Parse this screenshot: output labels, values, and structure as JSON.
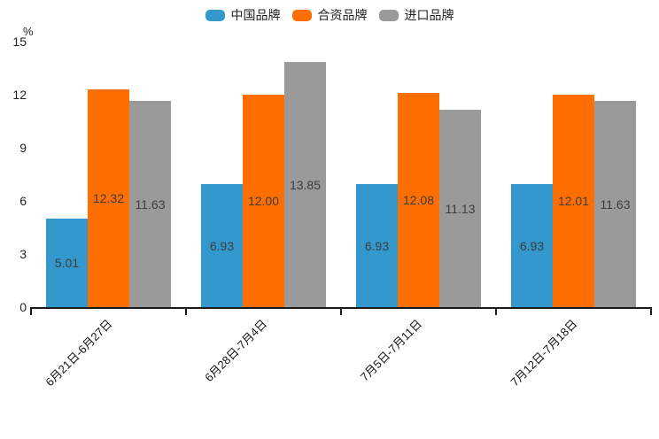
{
  "chart_data": {
    "type": "bar",
    "title": "",
    "xlabel": "",
    "ylabel": "%",
    "categories": [
      "6月21日-6月27日",
      "6月28日-7月4日",
      "7月5日-7月11日",
      "7月12日-7月18日"
    ],
    "series": [
      {
        "name": "中国品牌",
        "color": "#3398CC",
        "values": [
          5.01,
          6.93,
          6.93,
          6.93
        ],
        "value_labels": [
          "5.01",
          "6.93",
          "6.93",
          "6.93"
        ]
      },
      {
        "name": "合资品牌",
        "color": "#FF6E00",
        "values": [
          12.32,
          12.0,
          12.08,
          12.01
        ],
        "value_labels": [
          "12.32",
          "12.00",
          "12.08",
          "12.01"
        ]
      },
      {
        "name": "进口品牌",
        "color": "#9A9A9A",
        "values": [
          11.63,
          13.85,
          11.13,
          11.63
        ],
        "value_labels": [
          "11.63",
          "13.85",
          "11.13",
          "11.63"
        ]
      }
    ],
    "yticks": [
      0,
      3,
      6,
      9,
      12,
      15
    ],
    "ytick_labels": [
      "0",
      "3",
      "6",
      "9",
      "12",
      "15"
    ],
    "ylim": [
      0,
      15
    ],
    "grid": false,
    "legend_position": "top-center",
    "value_labels_shown": true,
    "value_label_color": "#3D3D3D",
    "axis_color": "#1A1A1A",
    "background_color": "#FFFFFF"
  }
}
